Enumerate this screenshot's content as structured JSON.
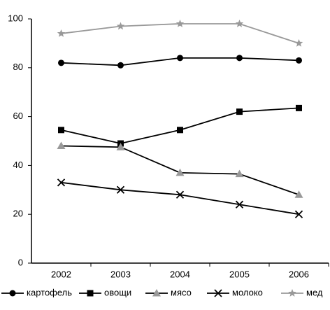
{
  "chart_data": {
    "type": "line",
    "categories": [
      "2002",
      "2003",
      "2004",
      "2005",
      "2006"
    ],
    "series": [
      {
        "name": "картофель",
        "color": "#000000",
        "marker": "circle",
        "values": [
          82,
          81,
          84,
          84,
          83
        ]
      },
      {
        "name": "овощи",
        "color": "#000000",
        "marker": "square",
        "values": [
          54.5,
          49,
          54.5,
          62,
          63.5
        ]
      },
      {
        "name": "мясо",
        "color": "#000000",
        "marker_color": "#999999",
        "marker": "triangle",
        "values": [
          48,
          47.5,
          37,
          36.5,
          28
        ]
      },
      {
        "name": "молоко",
        "color": "#000000",
        "marker": "x",
        "values": [
          33,
          30,
          28,
          24,
          20
        ]
      },
      {
        "name": "мед",
        "color": "#999999",
        "marker": "star",
        "values": [
          94,
          97,
          98,
          98,
          90
        ]
      }
    ],
    "ylim": [
      0,
      100
    ],
    "yticks": [
      0,
      20,
      40,
      60,
      80,
      100
    ],
    "grid": false,
    "legend": "bottom"
  }
}
